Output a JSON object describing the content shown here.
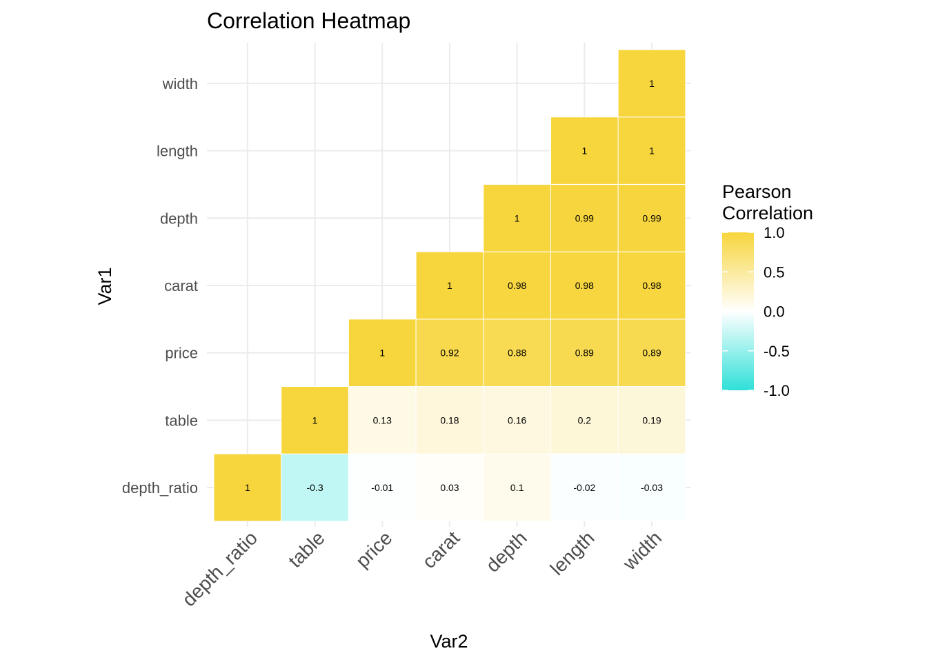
{
  "chart_data": {
    "type": "heatmap",
    "title": "Correlation Heatmap",
    "xlabel": "Var2",
    "ylabel": "Var1",
    "x_categories": [
      "depth_ratio",
      "table",
      "price",
      "carat",
      "depth",
      "length",
      "width"
    ],
    "y_categories": [
      "depth_ratio",
      "table",
      "price",
      "carat",
      "depth",
      "length",
      "width"
    ],
    "layout": "upper-triangle",
    "cells": [
      {
        "x": "depth_ratio",
        "y": "depth_ratio",
        "value": 1,
        "label": "1"
      },
      {
        "x": "table",
        "y": "depth_ratio",
        "value": -0.3,
        "label": "-0.3"
      },
      {
        "x": "price",
        "y": "depth_ratio",
        "value": -0.01,
        "label": "-0.01"
      },
      {
        "x": "carat",
        "y": "depth_ratio",
        "value": 0.03,
        "label": "0.03"
      },
      {
        "x": "depth",
        "y": "depth_ratio",
        "value": 0.1,
        "label": "0.1"
      },
      {
        "x": "length",
        "y": "depth_ratio",
        "value": -0.02,
        "label": "-0.02"
      },
      {
        "x": "width",
        "y": "depth_ratio",
        "value": -0.03,
        "label": "-0.03"
      },
      {
        "x": "table",
        "y": "table",
        "value": 1,
        "label": "1"
      },
      {
        "x": "price",
        "y": "table",
        "value": 0.13,
        "label": "0.13"
      },
      {
        "x": "carat",
        "y": "table",
        "value": 0.18,
        "label": "0.18"
      },
      {
        "x": "depth",
        "y": "table",
        "value": 0.16,
        "label": "0.16"
      },
      {
        "x": "length",
        "y": "table",
        "value": 0.2,
        "label": "0.2"
      },
      {
        "x": "width",
        "y": "table",
        "value": 0.19,
        "label": "0.19"
      },
      {
        "x": "price",
        "y": "price",
        "value": 1,
        "label": "1"
      },
      {
        "x": "carat",
        "y": "price",
        "value": 0.92,
        "label": "0.92"
      },
      {
        "x": "depth",
        "y": "price",
        "value": 0.88,
        "label": "0.88"
      },
      {
        "x": "length",
        "y": "price",
        "value": 0.89,
        "label": "0.89"
      },
      {
        "x": "width",
        "y": "price",
        "value": 0.89,
        "label": "0.89"
      },
      {
        "x": "carat",
        "y": "carat",
        "value": 1,
        "label": "1"
      },
      {
        "x": "depth",
        "y": "carat",
        "value": 0.98,
        "label": "0.98"
      },
      {
        "x": "length",
        "y": "carat",
        "value": 0.98,
        "label": "0.98"
      },
      {
        "x": "width",
        "y": "carat",
        "value": 0.98,
        "label": "0.98"
      },
      {
        "x": "depth",
        "y": "depth",
        "value": 1,
        "label": "1"
      },
      {
        "x": "length",
        "y": "depth",
        "value": 0.99,
        "label": "0.99"
      },
      {
        "x": "width",
        "y": "depth",
        "value": 0.99,
        "label": "0.99"
      },
      {
        "x": "length",
        "y": "length",
        "value": 1,
        "label": "1"
      },
      {
        "x": "width",
        "y": "length",
        "value": 1,
        "label": "1"
      },
      {
        "x": "width",
        "y": "width",
        "value": 1,
        "label": "1"
      }
    ],
    "legend": {
      "title_lines": [
        "Pearson",
        "Correlation"
      ],
      "ticks": [
        {
          "value": 1.0,
          "label": "1.0"
        },
        {
          "value": 0.5,
          "label": "0.5"
        },
        {
          "value": 0.0,
          "label": "0.0"
        },
        {
          "value": -0.5,
          "label": "-0.5"
        },
        {
          "value": -1.0,
          "label": "-1.0"
        }
      ],
      "placement": "right"
    },
    "color_scale": {
      "low": "#2ee0d8",
      "mid": "#ffffff",
      "high": "#f7d53c",
      "limits": [
        -1,
        1
      ]
    },
    "grid": true
  }
}
